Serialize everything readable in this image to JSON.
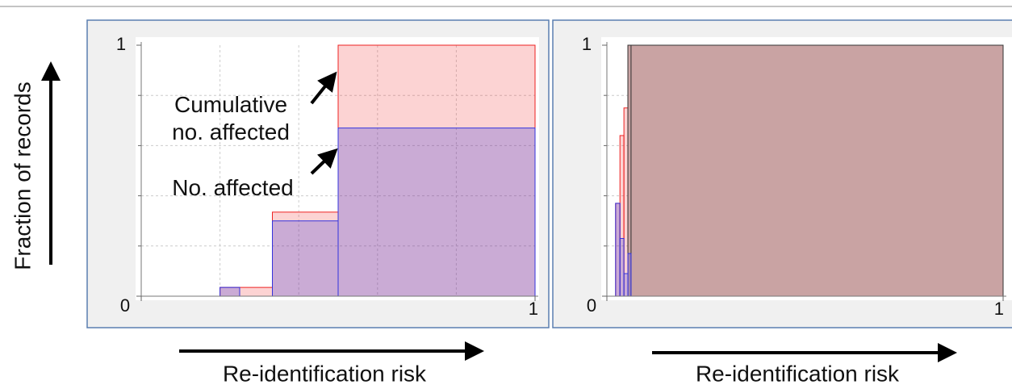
{
  "ylabel": "Fraction of records",
  "chart_data": [
    {
      "type": "histogram",
      "xlabel": "Re-identification risk",
      "bins": [
        0,
        0.2,
        0.25,
        0.333,
        0.5,
        1
      ],
      "series": [
        {
          "name": "Cumulative no. affected",
          "color": "#ee2222",
          "alpha": 0.2,
          "values": [
            0,
            0.035,
            0.035,
            0.335,
            1
          ]
        },
        {
          "name": "No. affected",
          "color": "#3333dd",
          "alpha": 0.25,
          "values": [
            0,
            0.035,
            0,
            0.3,
            0.67
          ]
        }
      ],
      "xlim": [
        0,
        1
      ],
      "ylim": [
        0,
        1
      ],
      "xticks": [
        0,
        1
      ],
      "yticks": [
        0,
        1
      ],
      "minor_ticks": [
        0.2,
        0.4,
        0.6,
        0.8
      ],
      "grid": true
    },
    {
      "type": "histogram",
      "xlabel": "Re-identification risk",
      "bins": [
        0,
        0.022,
        0.033,
        0.043,
        0.053,
        0.061,
        1
      ],
      "series": [
        {
          "color": "#ee2222",
          "alpha": 0.2,
          "values": [
            0,
            0.37,
            0.64,
            0.75,
            1,
            1
          ]
        },
        {
          "color": "#c9a3a3",
          "edgecolor": "#333333",
          "alpha": 1,
          "values": [
            0,
            0,
            0,
            0,
            1,
            1
          ]
        },
        {
          "color": "#3333dd",
          "alpha": 0.25,
          "values": [
            0,
            0.37,
            0.23,
            0.09,
            0.17,
            0
          ]
        }
      ],
      "xlim": [
        0,
        1
      ],
      "ylim": [
        0,
        1
      ],
      "xticks": [
        0,
        1
      ],
      "yticks": [
        0,
        1
      ],
      "minor_ticks": [
        0.2,
        0.4,
        0.6,
        0.8
      ],
      "grid": true
    }
  ]
}
